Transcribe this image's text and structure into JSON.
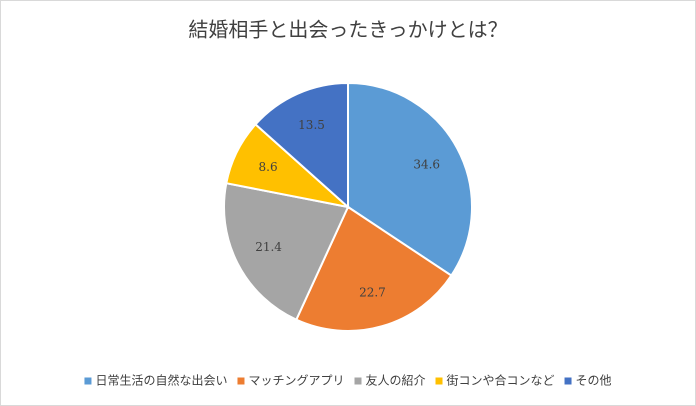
{
  "chart_data": {
    "type": "pie",
    "title": "結婚相手と出会ったきっかけとは？",
    "categories": [
      "日常生活の自然な出会い",
      "マッチングアプリ",
      "友人の紹介",
      "街コンや合コンなど",
      "その他"
    ],
    "values": [
      34.6,
      22.7,
      21.4,
      8.6,
      13.5
    ],
    "colors": [
      "#5b9bd5",
      "#ed7d31",
      "#a5a5a5",
      "#ffc000",
      "#4472c4"
    ],
    "legend": "bottom"
  }
}
